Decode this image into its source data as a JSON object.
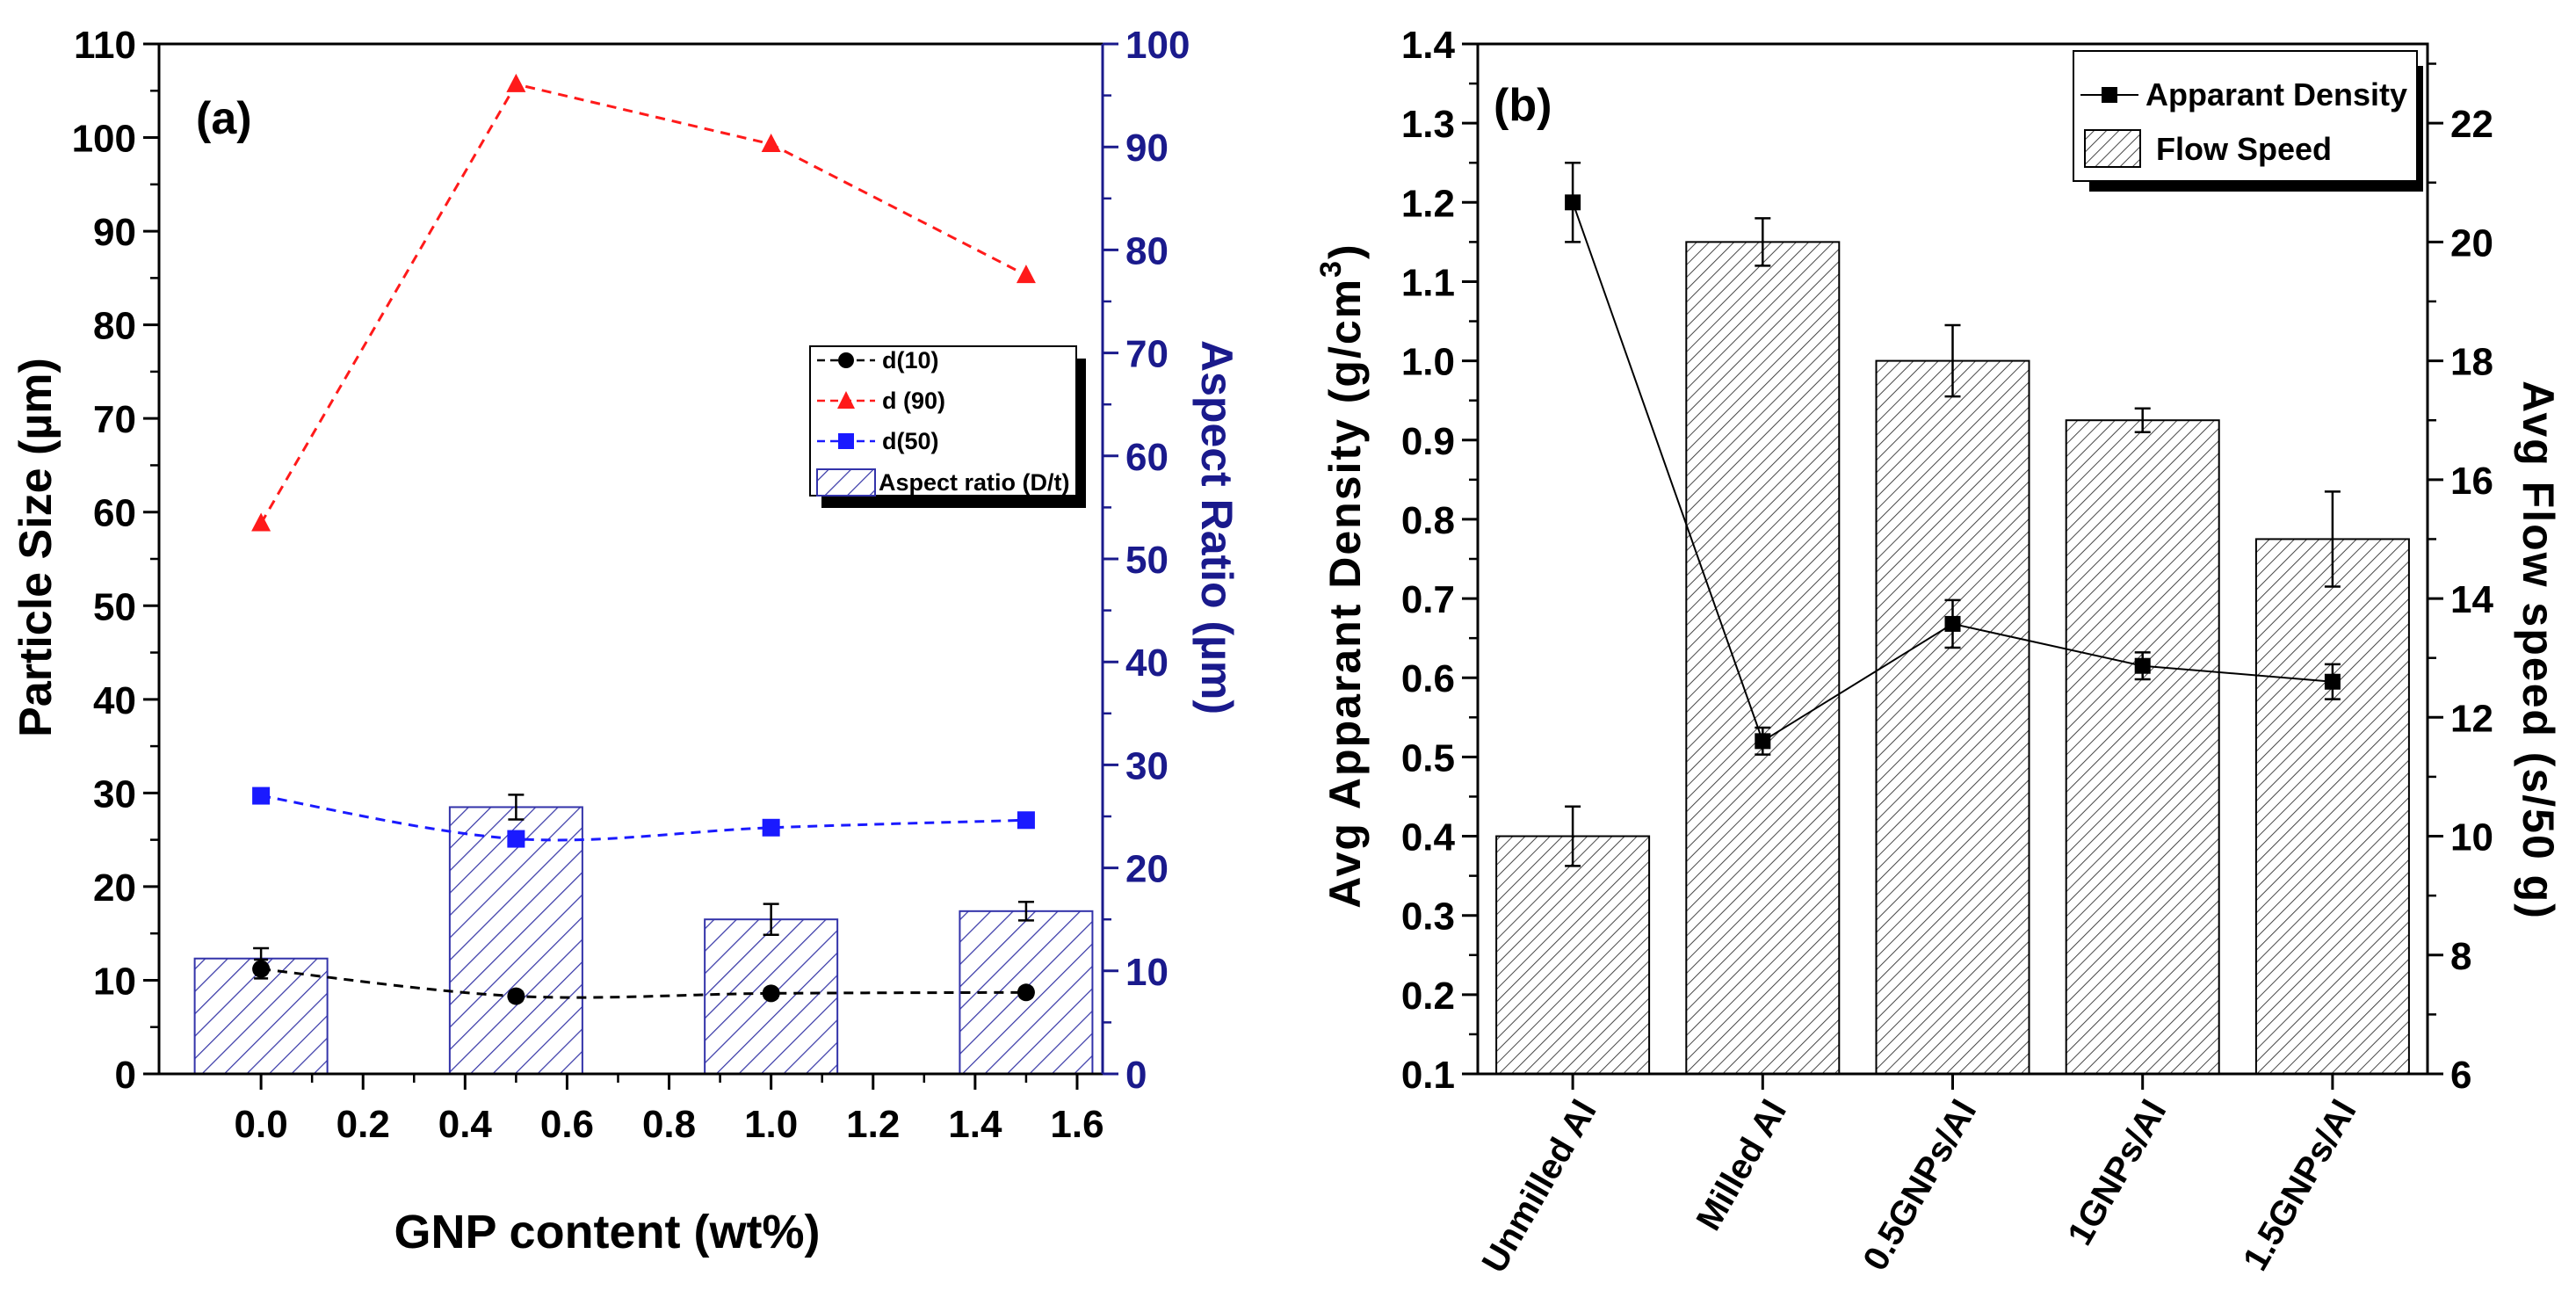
{
  "chart_data": [
    {
      "type": "bar+line",
      "panel_label": "(a)",
      "xlabel": "GNP content (wt%)",
      "ylabel_left": "Particle Size (µm)",
      "ylabel_right": "Aspect Ratio (µm)",
      "xlim": [
        -0.2,
        1.65
      ],
      "ylim_left": [
        0,
        110
      ],
      "ylim_right": [
        0,
        100
      ],
      "x_ticks": [
        "0.0",
        "0.2",
        "0.4",
        "0.6",
        "0.8",
        "1.0",
        "1.2",
        "1.4",
        "1.6"
      ],
      "y_left_ticks": [
        "0",
        "10",
        "20",
        "30",
        "40",
        "50",
        "60",
        "70",
        "80",
        "90",
        "100",
        "110"
      ],
      "y_right_ticks": [
        "0",
        "10",
        "20",
        "30",
        "40",
        "50",
        "60",
        "70",
        "80",
        "90",
        "100"
      ],
      "x": [
        0.0,
        0.5,
        1.0,
        1.5
      ],
      "series": [
        {
          "name": "d(10)",
          "axis": "left",
          "marker": "circle",
          "color": "#000000",
          "style": "dashed",
          "values": [
            11.2,
            8.3,
            8.6,
            8.7
          ],
          "errors": [
            1.0,
            0.5,
            0.5,
            0.5
          ]
        },
        {
          "name": "d (90)",
          "axis": "left",
          "marker": "triangle",
          "color": "#ff1a1a",
          "style": "dashed",
          "values": [
            58.8,
            105.7,
            99.3,
            85.3
          ],
          "errors": [
            0,
            0,
            0,
            0
          ]
        },
        {
          "name": "d(50)",
          "axis": "left",
          "marker": "square",
          "color": "#1a1aff",
          "style": "dashed",
          "values": [
            29.7,
            25.1,
            26.3,
            27.1
          ],
          "errors": [
            0,
            0,
            0,
            0
          ]
        },
        {
          "name": "Aspect ratio (D/t)",
          "axis": "right",
          "type": "bar",
          "color": "#3333aa",
          "values": [
            11.2,
            25.9,
            15.0,
            15.8
          ],
          "errors": [
            1.0,
            1.2,
            1.5,
            0.9
          ]
        }
      ]
    },
    {
      "type": "bar+line",
      "panel_label": "(b)",
      "ylabel_left": "Avg Apparant Density (g/cm",
      "ylabel_left_sup": "3",
      "ylabel_left_end": ")",
      "ylabel_right": "Avg Flow speed (s/50 g)",
      "ylim_left": [
        0.1,
        1.4
      ],
      "ylim_right": [
        6,
        23.333
      ],
      "categories": [
        "Unmilled Al",
        "Milled Al",
        "0.5GNPs/Al",
        "1GNPs/Al",
        "1.5GNPs/Al"
      ],
      "y_left_ticks": [
        "0.1",
        "0.2",
        "0.3",
        "0.4",
        "0.5",
        "0.6",
        "0.7",
        "0.8",
        "0.9",
        "1.0",
        "1.1",
        "1.2",
        "1.3",
        "1.4"
      ],
      "y_right_ticks": [
        "6",
        "8",
        "10",
        "12",
        "14",
        "16",
        "18",
        "20",
        "22"
      ],
      "series": [
        {
          "name": "Apparant Density",
          "axis": "left",
          "type": "line",
          "marker": "square",
          "color": "#000000",
          "values": [
            1.2,
            0.52,
            0.668,
            0.615,
            0.595
          ],
          "errors": [
            0.05,
            0.017,
            0.03,
            0.017,
            0.022
          ]
        },
        {
          "name": "Flow Speed",
          "axis": "right",
          "type": "bar",
          "color": "#333333",
          "values": [
            10.0,
            20.0,
            18.0,
            17.0,
            15.0
          ],
          "errors": [
            0.5,
            0.4,
            0.6,
            0.2,
            0.8
          ]
        }
      ]
    }
  ]
}
